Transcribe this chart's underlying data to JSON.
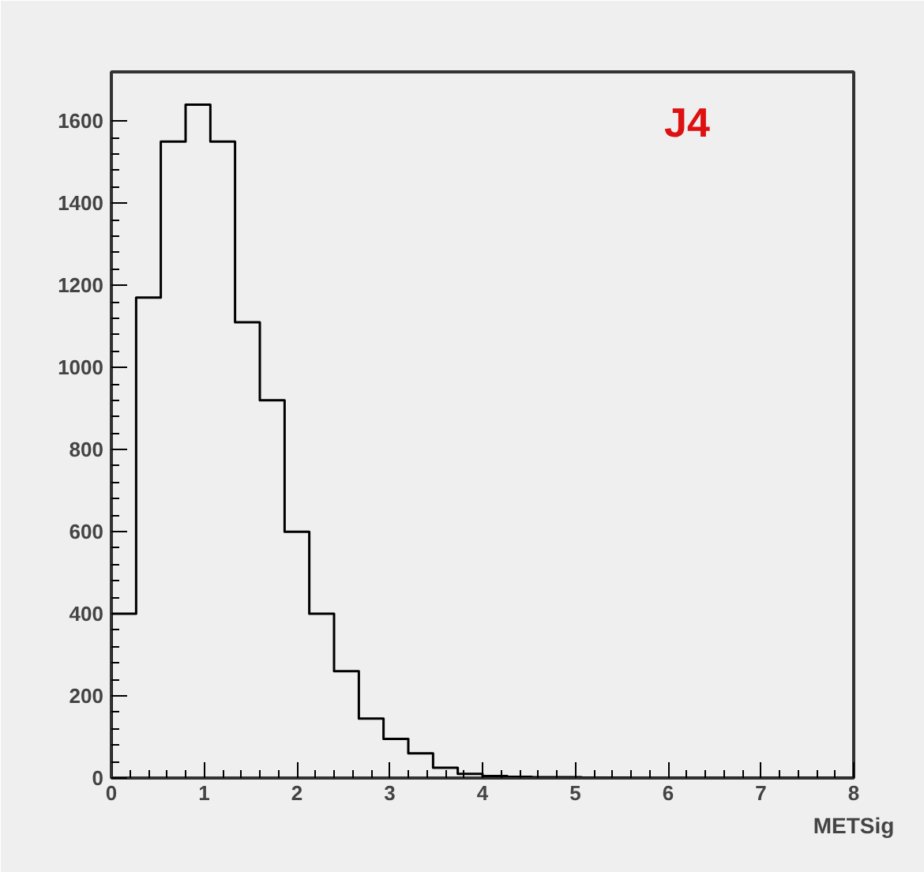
{
  "chart_data": {
    "type": "histogram",
    "xlabel": "METSig",
    "annotations": [
      "J4"
    ],
    "bins": [
      0,
      0.267,
      0.533,
      0.8,
      1.067,
      1.333,
      1.6,
      1.867,
      2.133,
      2.4,
      2.667,
      2.933,
      3.2,
      3.467,
      3.733,
      4,
      4.267,
      4.533,
      4.8,
      5.067,
      5.333,
      5.6,
      5.867,
      6.133,
      6.4,
      6.667,
      6.933,
      7.2,
      7.467,
      7.733,
      8
    ],
    "values": [
      400,
      1170,
      1550,
      1640,
      1550,
      1110,
      920,
      600,
      400,
      260,
      145,
      95,
      60,
      25,
      10,
      5,
      3,
      2,
      2,
      1,
      1,
      0,
      0,
      0,
      0,
      0,
      0,
      0,
      0,
      0
    ],
    "color": "#000000",
    "xlim": [
      0,
      8
    ],
    "ylim": [
      0,
      1720
    ],
    "xticks": [
      0,
      1,
      2,
      3,
      4,
      5,
      6,
      7,
      8
    ],
    "yticks": [
      0,
      200,
      400,
      600,
      800,
      1000,
      1200,
      1400,
      1600
    ],
    "grid": false
  }
}
